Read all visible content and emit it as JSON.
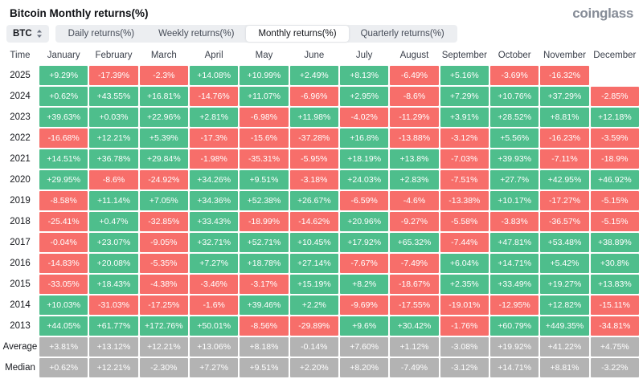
{
  "page": {
    "title": "Bitcoin Monthly returns(%)",
    "logo_text": "coinglass",
    "symbol_selector": {
      "value": "BTC",
      "icon": "updown-arrows"
    },
    "tabs": [
      {
        "label": "Daily returns(%)",
        "active": false
      },
      {
        "label": "Weekly returns(%)",
        "active": false
      },
      {
        "label": "Monthly returns(%)",
        "active": true
      },
      {
        "label": "Quarterly returns(%)",
        "active": false
      }
    ]
  },
  "chart_data": {
    "type": "heatmap",
    "title": "Bitcoin Monthly returns(%)",
    "time_column_header": "Time",
    "columns": [
      "January",
      "February",
      "March",
      "April",
      "May",
      "June",
      "July",
      "August",
      "September",
      "October",
      "November",
      "December"
    ],
    "rows": [
      {
        "label": "2025",
        "style": "signed",
        "values": [
          "+9.29%",
          "-17.39%",
          "-2.3%",
          "+14.08%",
          "+10.99%",
          "+2.49%",
          "+8.13%",
          "-6.49%",
          "+5.16%",
          "-3.69%",
          "-16.32%",
          null
        ]
      },
      {
        "label": "2024",
        "style": "signed",
        "values": [
          "+0.62%",
          "+43.55%",
          "+16.81%",
          "-14.76%",
          "+11.07%",
          "-6.96%",
          "+2.95%",
          "-8.6%",
          "+7.29%",
          "+10.76%",
          "+37.29%",
          "-2.85%"
        ]
      },
      {
        "label": "2023",
        "style": "signed",
        "values": [
          "+39.63%",
          "+0.03%",
          "+22.96%",
          "+2.81%",
          "-6.98%",
          "+11.98%",
          "-4.02%",
          "-11.29%",
          "+3.91%",
          "+28.52%",
          "+8.81%",
          "+12.18%"
        ]
      },
      {
        "label": "2022",
        "style": "signed",
        "values": [
          "-16.68%",
          "+12.21%",
          "+5.39%",
          "-17.3%",
          "-15.6%",
          "-37.28%",
          "+16.8%",
          "-13.88%",
          "-3.12%",
          "+5.56%",
          "-16.23%",
          "-3.59%"
        ]
      },
      {
        "label": "2021",
        "style": "signed",
        "values": [
          "+14.51%",
          "+36.78%",
          "+29.84%",
          "-1.98%",
          "-35.31%",
          "-5.95%",
          "+18.19%",
          "+13.8%",
          "-7.03%",
          "+39.93%",
          "-7.11%",
          "-18.9%"
        ]
      },
      {
        "label": "2020",
        "style": "signed",
        "values": [
          "+29.95%",
          "-8.6%",
          "-24.92%",
          "+34.26%",
          "+9.51%",
          "-3.18%",
          "+24.03%",
          "+2.83%",
          "-7.51%",
          "+27.7%",
          "+42.95%",
          "+46.92%"
        ]
      },
      {
        "label": "2019",
        "style": "signed",
        "values": [
          "-8.58%",
          "+11.14%",
          "+7.05%",
          "+34.36%",
          "+52.38%",
          "+26.67%",
          "-6.59%",
          "-4.6%",
          "-13.38%",
          "+10.17%",
          "-17.27%",
          "-5.15%"
        ]
      },
      {
        "label": "2018",
        "style": "signed",
        "values": [
          "-25.41%",
          "+0.47%",
          "-32.85%",
          "+33.43%",
          "-18.99%",
          "-14.62%",
          "+20.96%",
          "-9.27%",
          "-5.58%",
          "-3.83%",
          "-36.57%",
          "-5.15%"
        ]
      },
      {
        "label": "2017",
        "style": "signed",
        "values": [
          "-0.04%",
          "+23.07%",
          "-9.05%",
          "+32.71%",
          "+52.71%",
          "+10.45%",
          "+17.92%",
          "+65.32%",
          "-7.44%",
          "+47.81%",
          "+53.48%",
          "+38.89%"
        ]
      },
      {
        "label": "2016",
        "style": "signed",
        "values": [
          "-14.83%",
          "+20.08%",
          "-5.35%",
          "+7.27%",
          "+18.78%",
          "+27.14%",
          "-7.67%",
          "-7.49%",
          "+6.04%",
          "+14.71%",
          "+5.42%",
          "+30.8%"
        ]
      },
      {
        "label": "2015",
        "style": "signed",
        "values": [
          "-33.05%",
          "+18.43%",
          "-4.38%",
          "-3.46%",
          "-3.17%",
          "+15.19%",
          "+8.2%",
          "-18.67%",
          "+2.35%",
          "+33.49%",
          "+19.27%",
          "+13.83%"
        ]
      },
      {
        "label": "2014",
        "style": "signed",
        "values": [
          "+10.03%",
          "-31.03%",
          "-17.25%",
          "-1.6%",
          "+39.46%",
          "+2.2%",
          "-9.69%",
          "-17.55%",
          "-19.01%",
          "-12.95%",
          "+12.82%",
          "-15.11%"
        ]
      },
      {
        "label": "2013",
        "style": "signed",
        "values": [
          "+44.05%",
          "+61.77%",
          "+172.76%",
          "+50.01%",
          "-8.56%",
          "-29.89%",
          "+9.6%",
          "+30.42%",
          "-1.76%",
          "+60.79%",
          "+449.35%",
          "-34.81%"
        ]
      },
      {
        "label": "Average",
        "style": "neutral",
        "values": [
          "+3.81%",
          "+13.12%",
          "+12.21%",
          "+13.06%",
          "+8.18%",
          "-0.14%",
          "+7.60%",
          "+1.12%",
          "-3.08%",
          "+19.92%",
          "+41.22%",
          "+4.75%"
        ]
      },
      {
        "label": "Median",
        "style": "neutral",
        "values": [
          "+0.62%",
          "+12.21%",
          "-2.30%",
          "+7.27%",
          "+9.51%",
          "+2.20%",
          "+8.20%",
          "-7.49%",
          "-3.12%",
          "+14.71%",
          "+8.81%",
          "-3.22%"
        ]
      }
    ],
    "colors": {
      "positive": "#4EBE8C",
      "negative": "#F76E6A",
      "neutral": "#B3B3B3",
      "header_text": "#3A3F4A",
      "row_label_text": "#15171C"
    }
  }
}
